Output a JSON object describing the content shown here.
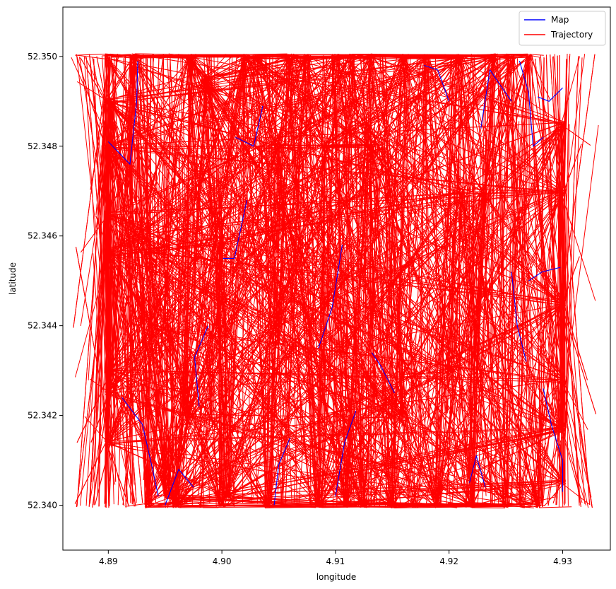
{
  "chart_data": {
    "type": "line",
    "title": "",
    "xlabel": "longitude",
    "ylabel": "latitude",
    "xlim": [
      4.886,
      4.9342
    ],
    "ylim": [
      52.339,
      52.3511
    ],
    "x_ticks": [
      {
        "value": 4.89,
        "label": "4.89"
      },
      {
        "value": 4.9,
        "label": "4.90"
      },
      {
        "value": 4.91,
        "label": "4.91"
      },
      {
        "value": 4.92,
        "label": "4.92"
      },
      {
        "value": 4.93,
        "label": "4.93"
      }
    ],
    "y_ticks": [
      {
        "value": 52.34,
        "label": "52.340"
      },
      {
        "value": 52.342,
        "label": "52.342"
      },
      {
        "value": 52.344,
        "label": "52.344"
      },
      {
        "value": 52.346,
        "label": "52.346"
      },
      {
        "value": 52.348,
        "label": "52.348"
      },
      {
        "value": 52.35,
        "label": "52.350"
      }
    ],
    "grid": false,
    "legend_position": "top-right",
    "legend": [
      {
        "label": "Map",
        "color": "#0000ff"
      },
      {
        "label": "Trajectory",
        "color": "#ff0000"
      }
    ],
    "series": [
      {
        "name": "Map",
        "color": "#0000ff",
        "segments": [
          [
            [
              4.89,
              52.3481
            ],
            [
              4.8919,
              52.3476
            ],
            [
              4.8925,
              52.349
            ],
            [
              4.8926,
              52.3499
            ]
          ],
          [
            [
              4.8912,
              52.3424
            ],
            [
              4.893,
              52.3418
            ],
            [
              4.8939,
              52.3408
            ],
            [
              4.8944,
              52.3402
            ]
          ],
          [
            [
              4.895,
              52.34
            ],
            [
              4.8962,
              52.3408
            ],
            [
              4.8975,
              52.3404
            ]
          ],
          [
            [
              4.898,
              52.3422
            ],
            [
              4.8976,
              52.3433
            ],
            [
              4.8988,
              52.344
            ]
          ],
          [
            [
              4.9001,
              52.3455
            ],
            [
              4.9011,
              52.3455
            ],
            [
              4.9022,
              52.3468
            ]
          ],
          [
            [
              4.9012,
              52.3482
            ],
            [
              4.9028,
              52.348
            ],
            [
              4.9036,
              52.3489
            ]
          ],
          [
            [
              4.9085,
              52.3435
            ],
            [
              4.9097,
              52.3444
            ],
            [
              4.9106,
              52.3458
            ]
          ],
          [
            [
              4.9132,
              52.3434
            ],
            [
              4.914,
              52.3431
            ],
            [
              4.9152,
              52.3425
            ]
          ],
          [
            [
              4.9178,
              52.3498
            ],
            [
              4.919,
              52.3497
            ],
            [
              4.92,
              52.349
            ]
          ],
          [
            [
              4.9218,
              52.3405
            ],
            [
              4.9224,
              52.3411
            ],
            [
              4.9232,
              52.3404
            ]
          ],
          [
            [
              4.9228,
              52.3484
            ],
            [
              4.9236,
              52.3497
            ],
            [
              4.9244,
              52.3494
            ],
            [
              4.9255,
              52.349
            ]
          ],
          [
            [
              4.9262,
              52.3499
            ],
            [
              4.927,
              52.3492
            ],
            [
              4.9274,
              52.348
            ],
            [
              4.9283,
              52.3482
            ]
          ],
          [
            [
              4.9255,
              52.3452
            ],
            [
              4.926,
              52.344
            ],
            [
              4.9268,
              52.3432
            ]
          ],
          [
            [
              4.927,
              52.345
            ],
            [
              4.9282,
              52.3452
            ],
            [
              4.9298,
              52.3453
            ]
          ],
          [
            [
              4.9278,
              52.3491
            ],
            [
              4.9288,
              52.349
            ],
            [
              4.93,
              52.3493
            ]
          ],
          [
            [
              4.9283,
              52.3426
            ],
            [
              4.929,
              52.3418
            ],
            [
              4.93,
              52.341
            ],
            [
              4.93,
              52.3403
            ]
          ],
          [
            [
              4.9046,
              52.34
            ],
            [
              4.905,
              52.3409
            ],
            [
              4.906,
              52.3415
            ]
          ],
          [
            [
              4.91,
              52.3402
            ],
            [
              4.9108,
              52.3414
            ],
            [
              4.9118,
              52.3421
            ]
          ]
        ]
      },
      {
        "name": "Trajectory",
        "color": "#ff0000",
        "nodes": [
          [
            4.89,
            52.35
          ],
          [
            4.89,
            52.349
          ],
          [
            4.89,
            52.348
          ],
          [
            4.89,
            52.3465
          ],
          [
            4.89,
            52.3456
          ],
          [
            4.89,
            52.343
          ],
          [
            4.89,
            52.3425
          ],
          [
            4.89,
            52.3414
          ],
          [
            4.8922,
            52.35
          ],
          [
            4.8925,
            52.346
          ],
          [
            4.8935,
            52.3456
          ],
          [
            4.894,
            52.344
          ],
          [
            4.8935,
            52.34
          ],
          [
            4.8952,
            52.3402
          ],
          [
            4.896,
            52.34
          ],
          [
            4.897,
            52.342
          ],
          [
            4.8972,
            52.35
          ],
          [
            4.8985,
            52.3495
          ],
          [
            4.9,
            52.34
          ],
          [
            4.9005,
            52.3402
          ],
          [
            4.902,
            52.35
          ],
          [
            4.903,
            52.35
          ],
          [
            4.904,
            52.34
          ],
          [
            4.905,
            52.348
          ],
          [
            4.906,
            52.35
          ],
          [
            4.9075,
            52.35
          ],
          [
            4.9085,
            52.34
          ],
          [
            4.909,
            52.348
          ],
          [
            4.91,
            52.35
          ],
          [
            4.911,
            52.34
          ],
          [
            4.9115,
            52.35
          ],
          [
            4.9125,
            52.34
          ],
          [
            4.913,
            52.35
          ],
          [
            4.914,
            52.348
          ],
          [
            4.915,
            52.34
          ],
          [
            4.916,
            52.35
          ],
          [
            4.917,
            52.34
          ],
          [
            4.918,
            52.35
          ],
          [
            4.919,
            52.34
          ],
          [
            4.92,
            52.343
          ],
          [
            4.921,
            52.35
          ],
          [
            4.922,
            52.34
          ],
          [
            4.923,
            52.347
          ],
          [
            4.924,
            52.35
          ],
          [
            4.925,
            52.34
          ],
          [
            4.9255,
            52.35
          ],
          [
            4.9265,
            52.34
          ],
          [
            4.927,
            52.35
          ],
          [
            4.928,
            52.34
          ],
          [
            4.93,
            52.3485
          ],
          [
            4.93,
            52.347
          ],
          [
            4.93,
            52.3445
          ],
          [
            4.93,
            52.3428
          ],
          [
            4.93,
            52.3417
          ],
          [
            4.93,
            52.3405
          ],
          [
            4.913,
            52.348
          ],
          [
            4.921,
            52.347
          ],
          [
            4.916,
            52.342
          ],
          [
            4.905,
            52.344
          ],
          [
            4.9,
            52.3458
          ]
        ]
      }
    ]
  }
}
